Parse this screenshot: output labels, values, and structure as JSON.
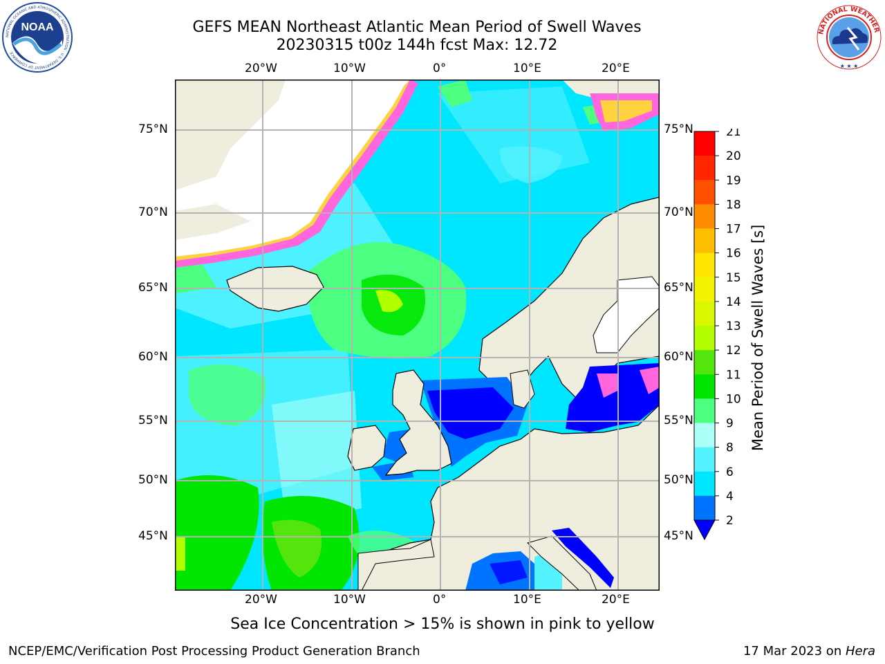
{
  "header": {
    "title_line1": "GEFS MEAN Northeast Atlantic Mean Period of Swell Waves",
    "title_line2": "20230315 t00z 144h fcst   Max: 12.72"
  },
  "logos": {
    "left": "NOAA",
    "left_ring": "NATIONAL OCEANIC AND ATMOSPHERIC ADMINISTRATION · U.S. DEPARTMENT OF COMMERCE",
    "right_ring": "NATIONAL WEATHER SERVICE"
  },
  "map": {
    "lon_labels": [
      "20°W",
      "10°W",
      "0°",
      "10°E",
      "20°E"
    ],
    "lat_labels": [
      "75°N",
      "70°N",
      "65°N",
      "60°N",
      "55°N",
      "50°N",
      "45°N"
    ],
    "colors": {
      "land": "#efedde",
      "ice_white": "#ffffff",
      "grid": "#b3b3b3"
    }
  },
  "colorbar": {
    "label": "Mean Period of Swell Waves [s]",
    "ticks": [
      "2",
      "4",
      "6",
      "8",
      "9",
      "10",
      "11",
      "12",
      "13",
      "14",
      "15",
      "16",
      "17",
      "18",
      "19",
      "20",
      "21"
    ],
    "colors": [
      "#0000ff",
      "#0073ff",
      "#00e6ff",
      "#55f2ff",
      "#aafff6",
      "#4dff80",
      "#00e600",
      "#54e60c",
      "#b3ff00",
      "#d9f700",
      "#f3f300",
      "#ffe600",
      "#ffbf00",
      "#ff8c00",
      "#ff5000",
      "#ff2600",
      "#ff0000"
    ]
  },
  "caption": "Sea Ice Concentration > 15% is shown in pink to yellow",
  "footer": {
    "left": "NCEP/EMC/Verification Post Processing Product Generation Branch",
    "right_prefix": "17 Mar 2023 on ",
    "right_host": "Hera"
  }
}
